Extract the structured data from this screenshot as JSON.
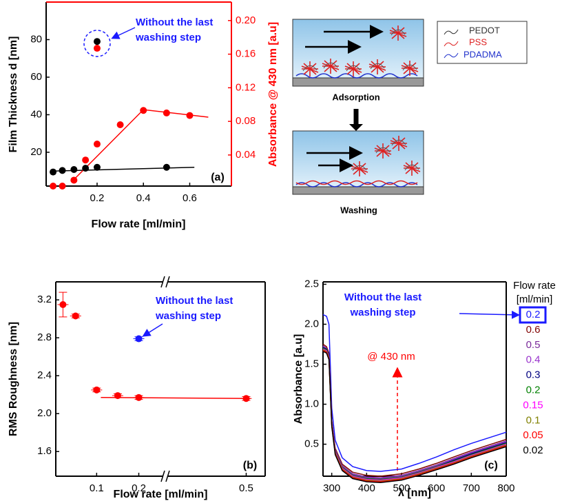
{
  "chart_data": [
    {
      "type": "scatter",
      "label": "(a)",
      "xlabel": "Flow rate [ml/min]",
      "ylabel": "Film Thickness d [nm]",
      "y2label": "Absorbance @ 430 nm [a.u]",
      "y2color": "#ff0000",
      "xlim": [
        -0.02,
        0.78
      ],
      "xticks": [
        0.2,
        0.4,
        0.6
      ],
      "ylim": [
        2,
        100
      ],
      "yticks": [
        20,
        40,
        60,
        80
      ],
      "y2lim": [
        0.003,
        0.222
      ],
      "y2ticks": [
        0.04,
        0.08,
        0.12,
        0.16,
        {
          "value": 0.2,
          "label": "0.20"
        }
      ],
      "series": [
        {
          "color": "#000000",
          "mode": "line",
          "x": [
            0.01,
            0.62
          ],
          "values": [
            10,
            12
          ]
        },
        {
          "color": "#ff0000",
          "mode": "line",
          "axis": "y2",
          "x": [
            0.09,
            0.4,
            0.68
          ],
          "values": [
            0.008,
            0.094,
            0.085
          ]
        },
        {
          "color": "#000000",
          "x": [
            0.01,
            0.05,
            0.1,
            0.15,
            0.2,
            0.5
          ],
          "values": [
            9.5,
            10.3,
            10.8,
            11.5,
            12,
            12
          ]
        },
        {
          "color": "#ff0000",
          "axis": "y2",
          "x": [
            0.01,
            0.05,
            0.1,
            0.15,
            0.2,
            0.3,
            0.4,
            0.5,
            0.6
          ],
          "values": [
            0.003,
            0.003,
            0.01,
            0.034,
            0.053,
            0.076,
            0.093,
            0.09,
            0.087
          ]
        },
        {
          "color": "#000000",
          "x": [
            0.2
          ],
          "values": [
            79
          ]
        },
        {
          "color": "#ff0000",
          "axis": "y2",
          "x": [
            0.2
          ],
          "values": [
            0.167
          ]
        }
      ],
      "annotation": [
        "Without the last",
        "washing step"
      ]
    },
    {
      "type": "scatter",
      "label": "(b)",
      "xlabel": "Flow rate [ml/min]",
      "ylabel": "RMS Roughness [nm]",
      "xlim": [
        0.003,
        0.545
      ],
      "xbreak": [
        0.258,
        0.303
      ],
      "xticks": [
        0.1,
        0.2,
        0.5
      ],
      "ylim": [
        1.34,
        3.39
      ],
      "yticks": [
        1.6,
        {
          "value": 2,
          "label": "2.0"
        },
        2.4,
        2.8,
        3.2
      ],
      "series": [
        {
          "color": "#ff0000",
          "mode": "line",
          "x": [
            0.11,
            0.51
          ],
          "values": [
            2.17,
            2.16
          ]
        },
        {
          "color": "#ff0000",
          "x": [
            0.02,
            0.05,
            0.1,
            0.15,
            0.2,
            0.5
          ],
          "values": [
            3.15,
            3.03,
            2.25,
            2.19,
            2.17,
            2.16
          ],
          "errors": [
            0.13,
            0.02,
            0.02,
            0.02,
            0.02,
            0.02
          ]
        },
        {
          "color": "#1a1aff",
          "x": [
            0.2
          ],
          "values": [
            2.79
          ],
          "errors": [
            0.02
          ]
        }
      ],
      "annotation": [
        "Without the last",
        "washing step"
      ]
    },
    {
      "type": "line",
      "label": "(c)",
      "xlabel": "λ [nm]",
      "ylabel": "Absorbance [a.u]",
      "xlim": [
        275,
        800
      ],
      "xticks": [
        300,
        400,
        500,
        600,
        700,
        800
      ],
      "ylim": [
        0.1,
        2.53
      ],
      "yticks": [
        0.5,
        {
          "value": 1,
          "label": "1.0"
        },
        1.5,
        {
          "value": 2,
          "label": "2.0"
        },
        2.5
      ],
      "x": [
        275,
        285,
        292,
        300,
        310,
        330,
        360,
        400,
        440,
        500,
        550,
        600,
        650,
        700,
        750,
        800
      ],
      "legend_title": [
        "Flow rate",
        "[ml/min]"
      ],
      "series": [
        {
          "name": "0.2",
          "color": "#1a1aff",
          "values": [
            2.12,
            2.1,
            2.0,
            0.95,
            0.55,
            0.33,
            0.22,
            0.17,
            0.16,
            0.19,
            0.26,
            0.34,
            0.43,
            0.51,
            0.58,
            0.65
          ]
        },
        {
          "name": "0.6",
          "color": "#800000",
          "values": [
            1.75,
            1.72,
            1.64,
            0.8,
            0.45,
            0.25,
            0.15,
            0.11,
            0.1,
            0.13,
            0.19,
            0.26,
            0.34,
            0.42,
            0.49,
            0.56
          ]
        },
        {
          "name": "0.5",
          "color": "#7a2a9a",
          "values": [
            1.73,
            1.7,
            1.62,
            0.78,
            0.43,
            0.23,
            0.13,
            0.09,
            0.08,
            0.11,
            0.17,
            0.24,
            0.32,
            0.4,
            0.47,
            0.54
          ]
        },
        {
          "name": "0.4",
          "color": "#9933cc",
          "values": [
            1.72,
            1.69,
            1.61,
            0.77,
            0.42,
            0.22,
            0.12,
            0.08,
            0.07,
            0.1,
            0.16,
            0.23,
            0.31,
            0.39,
            0.46,
            0.53
          ]
        },
        {
          "name": "0.3",
          "color": "#000080",
          "values": [
            1.71,
            1.69,
            1.61,
            0.76,
            0.41,
            0.21,
            0.11,
            0.07,
            0.06,
            0.09,
            0.15,
            0.22,
            0.3,
            0.38,
            0.45,
            0.52
          ]
        },
        {
          "name": "0.2",
          "color": "#008000",
          "values": [
            1.7,
            1.68,
            1.6,
            0.76,
            0.41,
            0.21,
            0.11,
            0.07,
            0.06,
            0.09,
            0.15,
            0.22,
            0.29,
            0.37,
            0.44,
            0.51
          ]
        },
        {
          "name": "0.15",
          "color": "#ff00ff",
          "values": [
            1.69,
            1.67,
            1.59,
            0.75,
            0.4,
            0.2,
            0.1,
            0.06,
            0.05,
            0.08,
            0.14,
            0.21,
            0.28,
            0.36,
            0.43,
            0.5
          ]
        },
        {
          "name": "0.1",
          "color": "#808000",
          "values": [
            1.68,
            1.66,
            1.58,
            0.74,
            0.39,
            0.19,
            0.09,
            0.05,
            0.04,
            0.07,
            0.13,
            0.2,
            0.27,
            0.35,
            0.42,
            0.49
          ]
        },
        {
          "name": "0.05",
          "color": "#ff0000",
          "values": [
            1.67,
            1.65,
            1.57,
            0.73,
            0.38,
            0.18,
            0.08,
            0.04,
            0.03,
            0.06,
            0.12,
            0.19,
            0.26,
            0.34,
            0.41,
            0.48
          ]
        },
        {
          "name": "0.02",
          "color": "#000000",
          "values": [
            1.66,
            1.64,
            1.56,
            0.72,
            0.37,
            0.17,
            0.07,
            0.03,
            0.02,
            0.05,
            0.11,
            0.18,
            0.25,
            0.33,
            0.4,
            0.47
          ]
        }
      ],
      "annotation": [
        "Without the last",
        "washing step"
      ],
      "marker_label": "@ 430 nm"
    }
  ],
  "diagram": {
    "legend": [
      "PEDOT",
      "PSS",
      "PDADMA"
    ],
    "steps": [
      "Adsorption",
      "Washing"
    ]
  }
}
